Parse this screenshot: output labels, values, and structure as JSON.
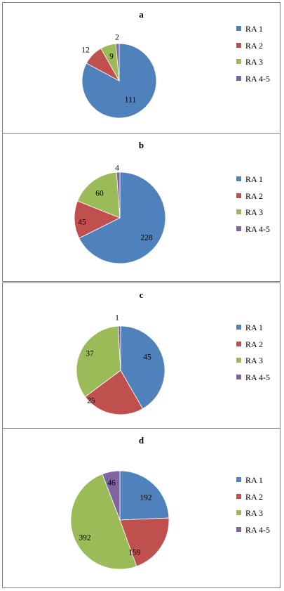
{
  "chart_data": [
    {
      "type": "pie",
      "title": "a",
      "categories": [
        "RA 1",
        "RA 2",
        "RA 3",
        "RA 4-5"
      ],
      "values": [
        111,
        12,
        9,
        2
      ],
      "colors": [
        "#4f81bd",
        "#c0504d",
        "#9bbb59",
        "#8064a2"
      ],
      "legend_position": "right"
    },
    {
      "type": "pie",
      "title": "b",
      "categories": [
        "RA 1",
        "RA 2",
        "RA 3",
        "RA 4-5"
      ],
      "values": [
        228,
        45,
        60,
        4
      ],
      "colors": [
        "#4f81bd",
        "#c0504d",
        "#9bbb59",
        "#8064a2"
      ],
      "legend_position": "right"
    },
    {
      "type": "pie",
      "title": "c",
      "categories": [
        "RA 1",
        "RA 2",
        "RA 3",
        "RA 4-5"
      ],
      "values": [
        45,
        25,
        37,
        1
      ],
      "colors": [
        "#4f81bd",
        "#c0504d",
        "#9bbb59",
        "#8064a2"
      ],
      "legend_position": "right"
    },
    {
      "type": "pie",
      "title": "d",
      "categories": [
        "RA 1",
        "RA 2",
        "RA 3",
        "RA 4-5"
      ],
      "values": [
        192,
        159,
        392,
        46
      ],
      "colors": [
        "#4f81bd",
        "#c0504d",
        "#9bbb59",
        "#8064a2"
      ],
      "legend_position": "right"
    }
  ]
}
